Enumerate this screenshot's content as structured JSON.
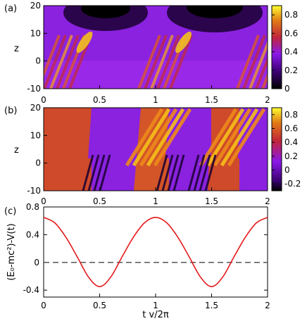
{
  "chart_data": [
    {
      "panel_label": "(a)",
      "type": "heatmap",
      "ylabel": "z",
      "x_ticks": [
        "0",
        "0.5",
        "1",
        "1.5",
        "2"
      ],
      "y_ticks": [
        "20",
        "10",
        "0",
        "-10"
      ],
      "xlim": [
        0,
        2
      ],
      "ylim": [
        -10,
        20
      ],
      "colorbar": {
        "range": [
          0,
          0.9
        ],
        "ticks": [
          "0.8",
          "0.6",
          "0.4",
          "0.2",
          "0"
        ]
      }
    },
    {
      "panel_label": "(b)",
      "type": "heatmap",
      "ylabel": "z",
      "x_ticks": [
        "0",
        "0.5",
        "1",
        "1.5",
        "2"
      ],
      "y_ticks": [
        "20",
        "10",
        "0",
        "-10"
      ],
      "xlim": [
        0,
        2
      ],
      "ylim": [
        -10,
        20
      ],
      "colorbar": {
        "range": [
          -0.3,
          0.9
        ],
        "ticks": [
          "0.8",
          "0.6",
          "0.4",
          "0.2",
          "0",
          "-0.2"
        ]
      }
    },
    {
      "panel_label": "(c)",
      "type": "line",
      "xlabel": "t v/2π",
      "ylabel": "(E₀-mc²)-V(t)",
      "x_ticks": [
        "0",
        "0.5",
        "1",
        "1.5",
        "2"
      ],
      "y_ticks": [
        "0.8",
        "0.4",
        "0",
        "-0.4"
      ],
      "xlim": [
        0,
        2
      ],
      "ylim": [
        -0.5,
        0.8
      ],
      "series": [
        {
          "color": "#e41a1c",
          "x": [
            0,
            0.1,
            0.2,
            0.3,
            0.4,
            0.5,
            0.6,
            0.7,
            0.8,
            0.9,
            1.0,
            1.1,
            1.2,
            1.3,
            1.4,
            1.5,
            1.6,
            1.7,
            1.8,
            1.9,
            2.0
          ],
          "y": [
            0.65,
            0.57,
            0.36,
            0.08,
            -0.21,
            -0.35,
            -0.21,
            0.08,
            0.36,
            0.57,
            0.65,
            0.57,
            0.36,
            0.08,
            -0.21,
            -0.35,
            -0.21,
            0.08,
            0.36,
            0.57,
            0.65
          ]
        }
      ],
      "reference_line": {
        "y": 0,
        "style": "dashed",
        "color": "#555555"
      }
    }
  ]
}
